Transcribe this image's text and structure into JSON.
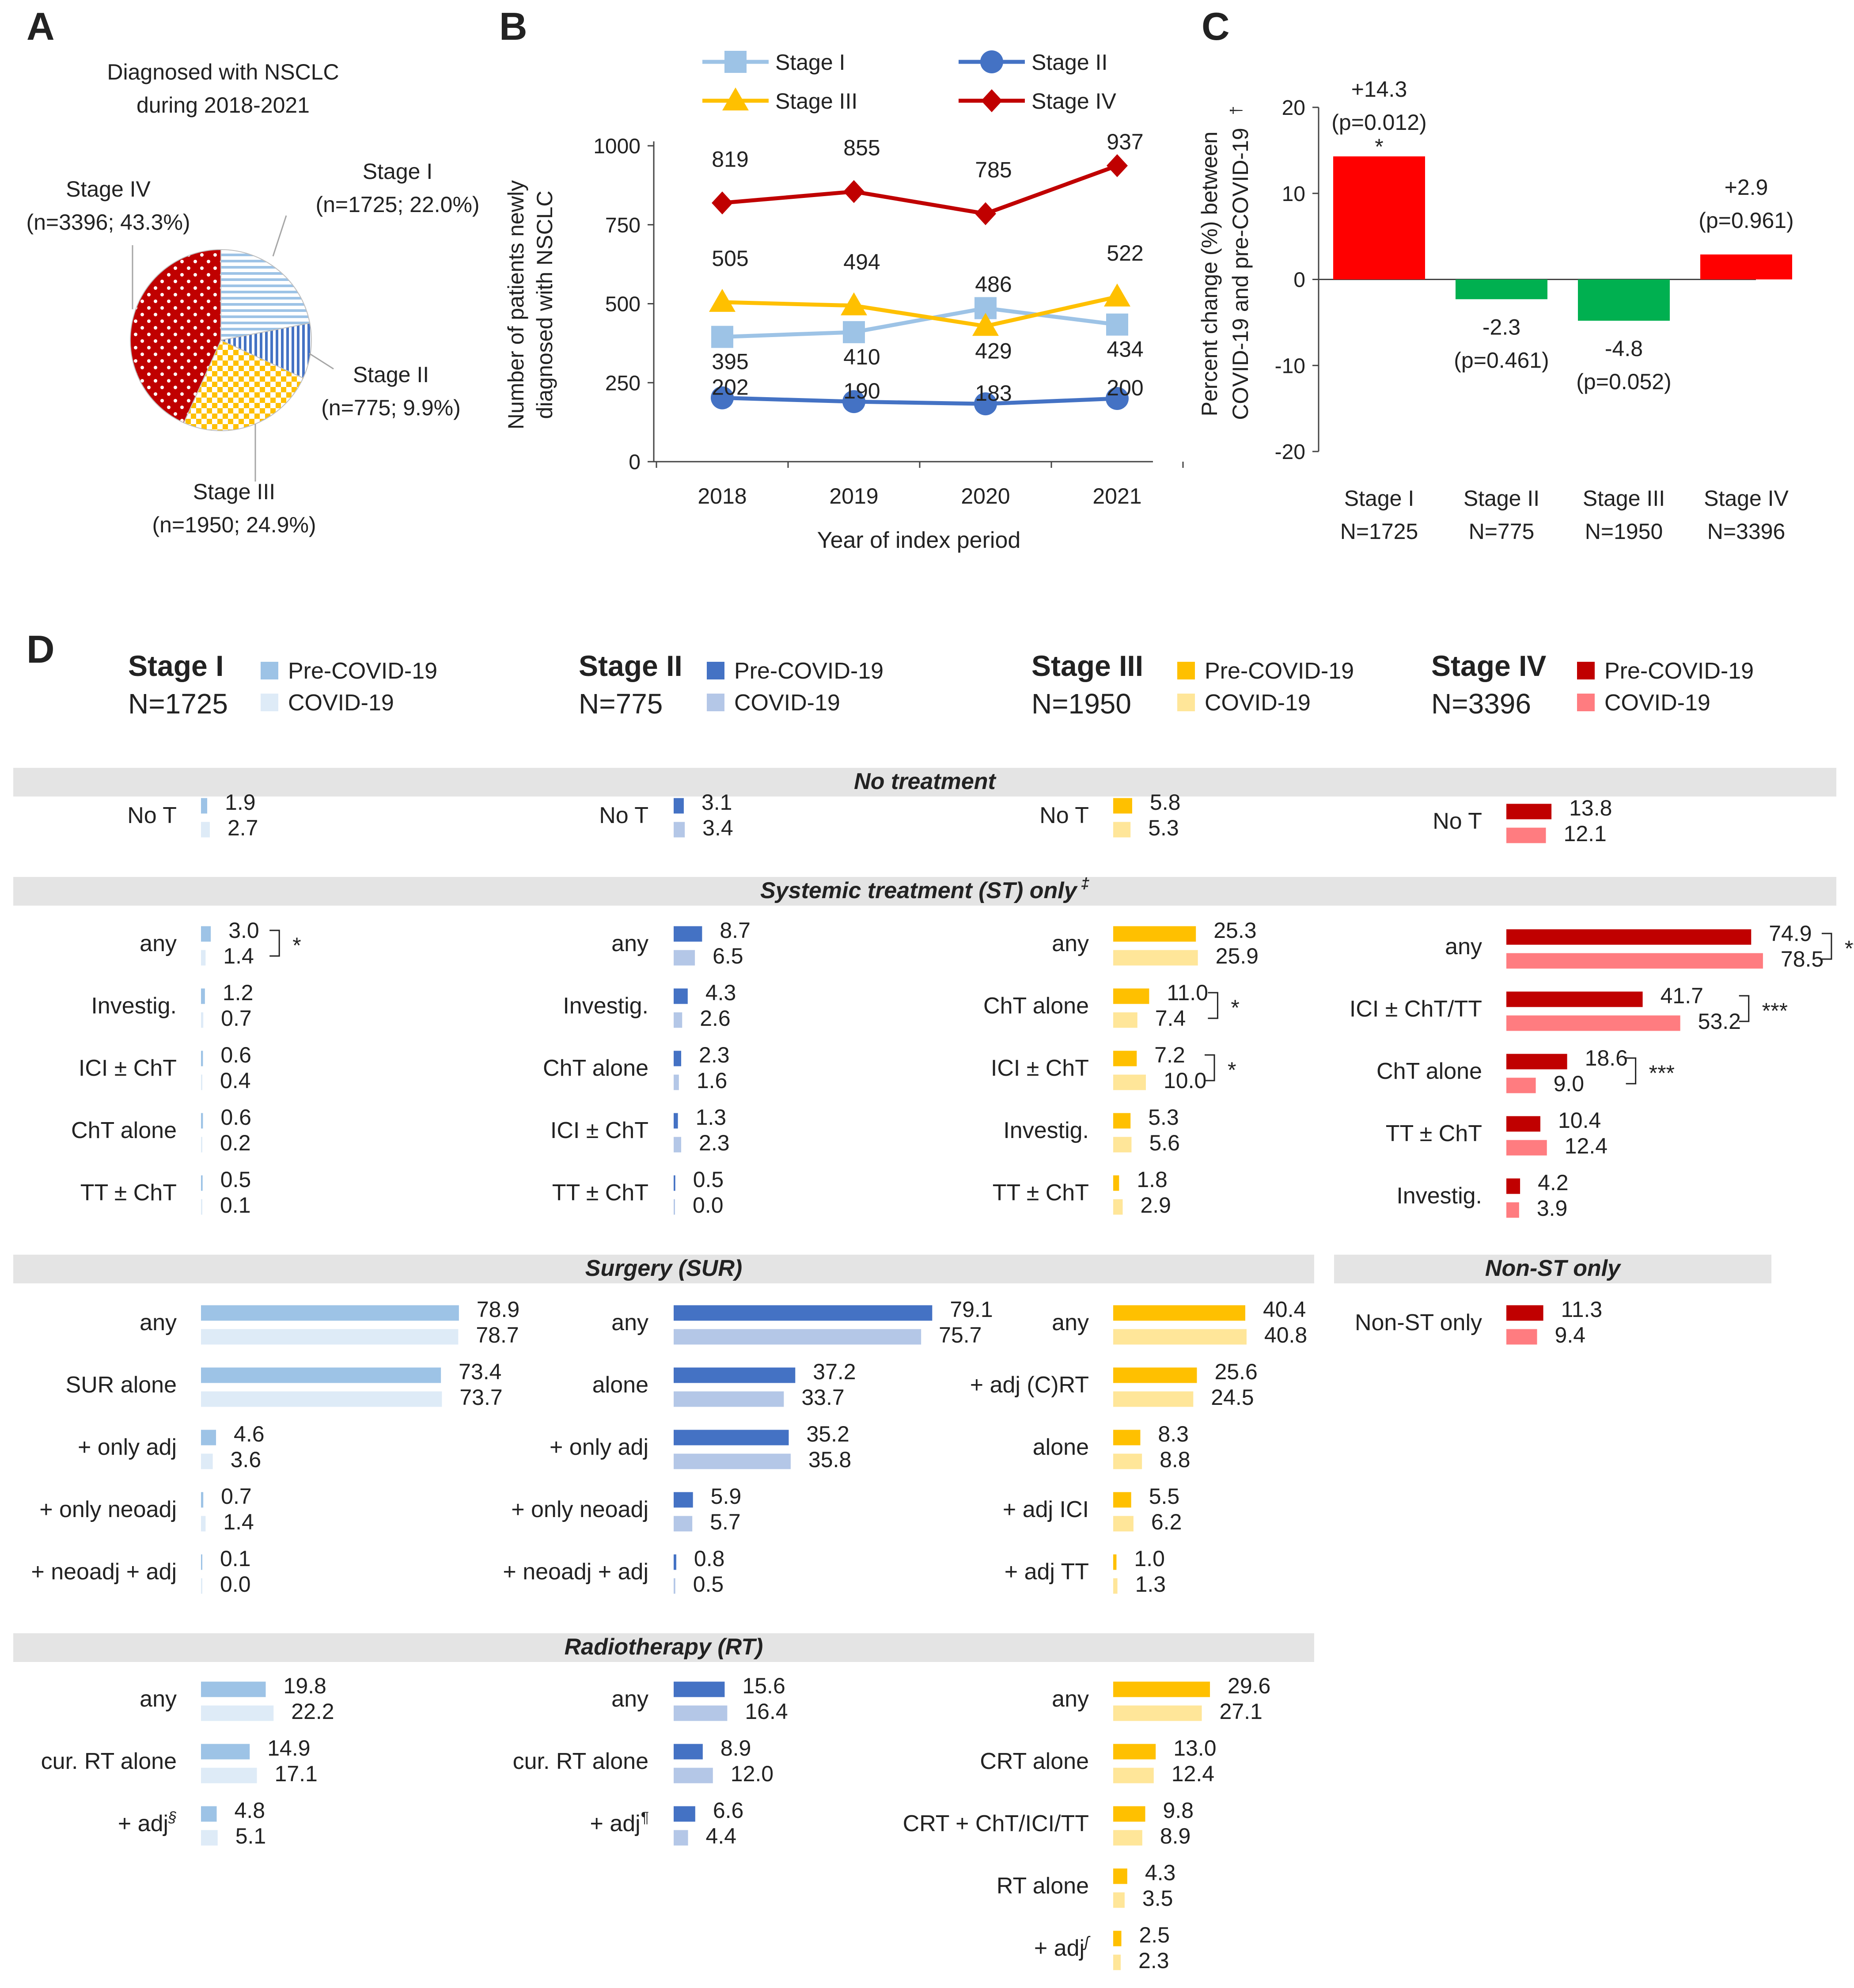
{
  "colors": {
    "stage1": "#9dc3e6",
    "stage1_light": "#deebf7",
    "stage2": "#4472c4",
    "stage2_light": "#b4c7e7",
    "stage3": "#ffc000",
    "stage3_light": "#ffe699",
    "stage4": "#c00000",
    "stage4_light": "#ff7c80",
    "green": "#00b050",
    "red": "#ff0000",
    "section_bg": "#e4e4e4"
  },
  "panel_letters": [
    "A",
    "B",
    "C",
    "D"
  ],
  "chart_data": [
    {
      "panel": "A",
      "type": "pie",
      "title_lines": [
        "Diagnosed with NSCLC",
        "during 2018-2021"
      ],
      "slices": [
        {
          "name": "Stage I",
          "n": 1725,
          "pct": 22.0,
          "label": "(n=1725; 22.0%)",
          "pattern": "horizontal-lines",
          "color": "#9dc3e6"
        },
        {
          "name": "Stage II",
          "n": 775,
          "pct": 9.9,
          "label": "(n=775; 9.9%)",
          "pattern": "vertical-lines",
          "color": "#4472c4"
        },
        {
          "name": "Stage III",
          "n": 1950,
          "pct": 24.9,
          "label": "(n=1950; 24.9%)",
          "pattern": "checker",
          "color": "#ffc000"
        },
        {
          "name": "Stage IV",
          "n": 3396,
          "pct": 43.3,
          "label": "(n=3396; 43.3%)",
          "pattern": "dots",
          "color": "#c00000"
        }
      ]
    },
    {
      "panel": "B",
      "type": "line",
      "ylabel_lines": [
        "Number of patients newly",
        "diagnosed with NSCLC"
      ],
      "xlabel": "Year of index period",
      "ylim": [
        0,
        1000
      ],
      "yticks": [
        0,
        250,
        500,
        750,
        1000
      ],
      "categories": [
        "2018",
        "2019",
        "2020",
        "2021"
      ],
      "series": [
        {
          "name": "Stage I",
          "color": "#9dc3e6",
          "marker": "square",
          "values": [
            395,
            410,
            486,
            434
          ]
        },
        {
          "name": "Stage II",
          "color": "#4472c4",
          "marker": "circle",
          "values": [
            202,
            190,
            183,
            200
          ]
        },
        {
          "name": "Stage III",
          "color": "#ffc000",
          "marker": "triangle",
          "values": [
            505,
            494,
            429,
            522
          ]
        },
        {
          "name": "Stage IV",
          "color": "#c00000",
          "marker": "diamond",
          "values": [
            819,
            855,
            785,
            937
          ]
        }
      ]
    },
    {
      "panel": "C",
      "type": "bar",
      "ylabel_lines": [
        "Percent change (%) between",
        "COVID-19 and pre-COVID-19"
      ],
      "ylabel_mark": "†",
      "ylim": [
        -20,
        20
      ],
      "yticks": [
        -20,
        -10,
        0,
        10,
        20
      ],
      "categories": [
        "Stage I",
        "Stage II",
        "Stage III",
        "Stage IV"
      ],
      "category_n": [
        "N=1725",
        "N=775",
        "N=1950",
        "N=3396"
      ],
      "values": [
        14.3,
        -2.3,
        -4.8,
        2.9
      ],
      "value_labels": [
        "+14.3",
        "-2.3",
        "-4.8",
        "+2.9"
      ],
      "p_labels": [
        "(p=0.012)",
        "(p=0.461)",
        "(p=0.052)",
        "(p=0.961)"
      ],
      "significance": [
        "*",
        "",
        "",
        ""
      ]
    },
    {
      "panel": "D",
      "type": "bar",
      "orientation": "horizontal",
      "legend": {
        "pre": "Pre-COVID-19",
        "covid": "COVID-19"
      },
      "stages": [
        {
          "name": "Stage I",
          "n": "N=1725"
        },
        {
          "name": "Stage II",
          "n": "N=775"
        },
        {
          "name": "Stage III",
          "n": "N=1950"
        },
        {
          "name": "Stage IV",
          "n": "N=3396"
        }
      ],
      "sections": [
        {
          "title": "No treatment",
          "mark": "",
          "columns": [
            [
              {
                "label": "No T",
                "pre": 1.9,
                "covid": 2.7
              }
            ],
            [
              {
                "label": "No T",
                "pre": 3.1,
                "covid": 3.4
              }
            ],
            [
              {
                "label": "No T",
                "pre": 5.8,
                "covid": 5.3
              }
            ],
            [
              {
                "label": "No T",
                "pre": 13.8,
                "covid": 12.1
              }
            ]
          ]
        },
        {
          "title": "Systemic treatment (ST) only",
          "mark": "‡",
          "columns": [
            [
              {
                "label": "any",
                "pre": 3.0,
                "covid": 1.4,
                "sig": "*"
              },
              {
                "label": "Investig.",
                "pre": 1.2,
                "covid": 0.7
              },
              {
                "label": "ICI ± ChT",
                "pre": 0.6,
                "covid": 0.4
              },
              {
                "label": "ChT alone",
                "pre": 0.6,
                "covid": 0.2
              },
              {
                "label": "TT ± ChT",
                "pre": 0.5,
                "covid": 0.1
              }
            ],
            [
              {
                "label": "any",
                "pre": 8.7,
                "covid": 6.5
              },
              {
                "label": "Investig.",
                "pre": 4.3,
                "covid": 2.6
              },
              {
                "label": "ChT alone",
                "pre": 2.3,
                "covid": 1.6
              },
              {
                "label": "ICI ± ChT",
                "pre": 1.3,
                "covid": 2.3
              },
              {
                "label": "TT ± ChT",
                "pre": 0.5,
                "covid": 0.0
              }
            ],
            [
              {
                "label": "any",
                "pre": 25.3,
                "covid": 25.9
              },
              {
                "label": "ChT alone",
                "pre": 11.0,
                "covid": 7.4,
                "sig": "*"
              },
              {
                "label": "ICI ± ChT",
                "pre": 7.2,
                "covid": 10.0,
                "sig": "*"
              },
              {
                "label": "Investig.",
                "pre": 5.3,
                "covid": 5.6
              },
              {
                "label": "TT ± ChT",
                "pre": 1.8,
                "covid": 2.9
              }
            ],
            [
              {
                "label": "any",
                "pre": 74.9,
                "covid": 78.5,
                "sig": "***"
              },
              {
                "label": "ICI ± ChT/TT",
                "pre": 41.7,
                "covid": 53.2,
                "sig": "***"
              },
              {
                "label": "ChT alone",
                "pre": 18.6,
                "covid": 9.0,
                "sig": "***"
              },
              {
                "label": "TT ± ChT",
                "pre": 10.4,
                "covid": 12.4
              },
              {
                "label": "Investig.",
                "pre": 4.2,
                "covid": 3.9
              }
            ]
          ]
        },
        {
          "title": "Surgery (SUR)",
          "mark": "",
          "columns": [
            [
              {
                "label": "any",
                "pre": 78.9,
                "covid": 78.7
              },
              {
                "label": "SUR alone",
                "pre": 73.4,
                "covid": 73.7
              },
              {
                "label": "+ only adj",
                "pre": 4.6,
                "covid": 3.6
              },
              {
                "label": "+ only neoadj",
                "pre": 0.7,
                "covid": 1.4
              },
              {
                "label": "+ neoadj + adj",
                "pre": 0.1,
                "covid": 0.0
              }
            ],
            [
              {
                "label": "any",
                "pre": 79.1,
                "covid": 75.7
              },
              {
                "label": "alone",
                "pre": 37.2,
                "covid": 33.7
              },
              {
                "label": "+ only adj",
                "pre": 35.2,
                "covid": 35.8
              },
              {
                "label": "+ only neoadj",
                "pre": 5.9,
                "covid": 5.7
              },
              {
                "label": "+ neoadj + adj",
                "pre": 0.8,
                "covid": 0.5
              }
            ],
            [
              {
                "label": "any",
                "pre": 40.4,
                "covid": 40.8
              },
              {
                "label": "+ adj (C)RT",
                "pre": 25.6,
                "covid": 24.5
              },
              {
                "label": "alone",
                "pre": 8.3,
                "covid": 8.8
              },
              {
                "label": "+ adj ICI",
                "pre": 5.5,
                "covid": 6.2
              },
              {
                "label": "+ adj TT",
                "pre": 1.0,
                "covid": 1.3
              }
            ]
          ]
        },
        {
          "title": "Non-ST only",
          "mark": "",
          "columns": [
            [
              {
                "label": "Non-ST only",
                "pre": 11.3,
                "covid": 9.4
              }
            ]
          ]
        },
        {
          "title": "Radiotherapy (RT)",
          "mark": "",
          "columns": [
            [
              {
                "label": "any",
                "pre": 19.8,
                "covid": 22.2
              },
              {
                "label": "cur. RT alone",
                "pre": 14.9,
                "covid": 17.1
              },
              {
                "label": "+ adj",
                "sup": "§",
                "pre": 4.8,
                "covid": 5.1
              }
            ],
            [
              {
                "label": "any",
                "pre": 15.6,
                "covid": 16.4
              },
              {
                "label": "cur. RT alone",
                "pre": 8.9,
                "covid": 12.0
              },
              {
                "label": "+ adj",
                "sup": "¶",
                "pre": 6.6,
                "covid": 4.4
              }
            ],
            [
              {
                "label": "any",
                "pre": 29.6,
                "covid": 27.1
              },
              {
                "label": "CRT alone",
                "pre": 13.0,
                "covid": 12.4
              },
              {
                "label": "CRT + ChT/ICI/TT",
                "pre": 9.8,
                "covid": 8.9
              },
              {
                "label": "RT alone",
                "pre": 4.3,
                "covid": 3.5
              },
              {
                "label": "+ adj",
                "sup": "ʃ",
                "pre": 2.5,
                "covid": 2.3
              }
            ]
          ]
        }
      ]
    }
  ]
}
